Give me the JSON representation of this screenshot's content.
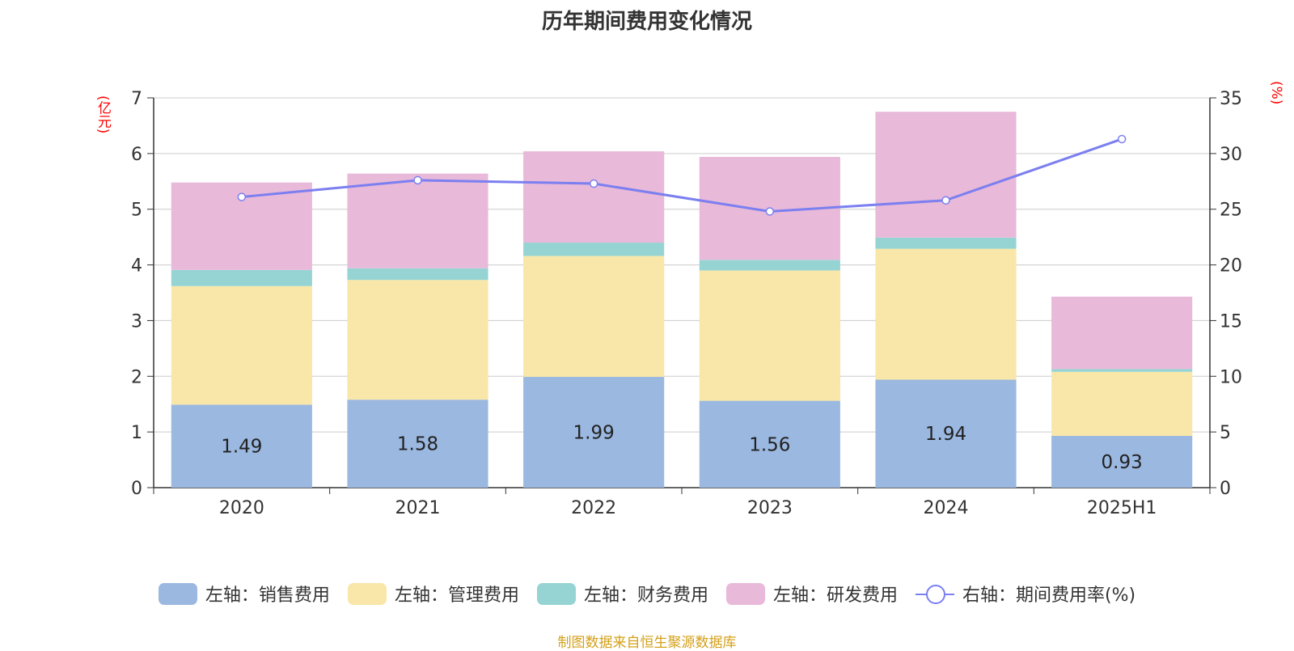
{
  "chart_data": {
    "type": "bar",
    "title": "历年期间费用变化情况",
    "categories": [
      "2020",
      "2021",
      "2022",
      "2023",
      "2024",
      "2025H1"
    ],
    "left_axis": {
      "unit": "(亿元)",
      "ylim": [
        0,
        7
      ],
      "ticks": [
        "0",
        "1",
        "2",
        "3",
        "4",
        "5",
        "6",
        "7"
      ]
    },
    "right_axis": {
      "unit": "(%)",
      "ylim": [
        0,
        35
      ],
      "ticks": [
        "0",
        "5",
        "10",
        "15",
        "20",
        "25",
        "30",
        "35"
      ]
    },
    "series": [
      {
        "name": "左轴：销售费用",
        "values": [
          1.49,
          1.58,
          1.99,
          1.56,
          1.94,
          0.93
        ],
        "color": "#9bb8e0",
        "labels": [
          "1.49",
          "1.58",
          "1.99",
          "1.56",
          "1.94",
          "0.93"
        ]
      },
      {
        "name": "左轴：管理费用",
        "values": [
          2.13,
          2.15,
          2.17,
          2.34,
          2.35,
          1.15
        ],
        "color": "#f8e7a8"
      },
      {
        "name": "左轴：财务费用",
        "values": [
          0.29,
          0.21,
          0.24,
          0.19,
          0.2,
          0.05
        ],
        "color": "#96d4d4"
      },
      {
        "name": "左轴：研发费用",
        "values": [
          1.57,
          1.7,
          1.64,
          1.85,
          2.26,
          1.3
        ],
        "color": "#e8b9d9"
      }
    ],
    "line_series": {
      "name": "右轴：期间费用率(%)",
      "values": [
        26.1,
        27.6,
        27.3,
        24.8,
        25.8,
        31.3
      ],
      "color": "#7b7ff0"
    },
    "grid": true,
    "legend_position": "bottom"
  },
  "source": "制图数据来自恒生聚源数据库"
}
